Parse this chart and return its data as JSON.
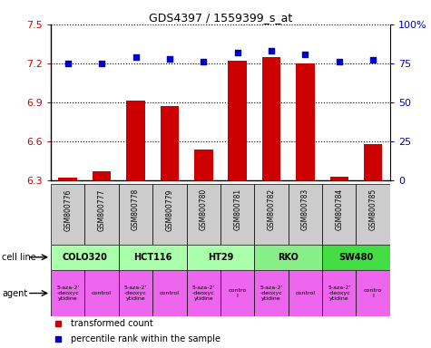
{
  "title": "GDS4397 / 1559399_s_at",
  "samples": [
    "GSM800776",
    "GSM800777",
    "GSM800778",
    "GSM800779",
    "GSM800780",
    "GSM800781",
    "GSM800782",
    "GSM800783",
    "GSM800784",
    "GSM800785"
  ],
  "bar_values": [
    6.32,
    6.37,
    6.91,
    6.87,
    6.54,
    7.22,
    7.25,
    7.2,
    6.33,
    6.58
  ],
  "dot_values": [
    75,
    75,
    79,
    78,
    76,
    82,
    83,
    81,
    76,
    77
  ],
  "bar_color": "#cc0000",
  "dot_color": "#0000cc",
  "ylim_left": [
    6.3,
    7.5
  ],
  "ylim_right": [
    0,
    100
  ],
  "yticks_left": [
    6.3,
    6.6,
    6.9,
    7.2,
    7.5
  ],
  "ytick_labels_left": [
    "6.3",
    "6.6",
    "6.9",
    "7.2",
    "7.5"
  ],
  "yticks_right": [
    0,
    25,
    50,
    75,
    100
  ],
  "ytick_labels_right": [
    "0",
    "25",
    "50",
    "75",
    "100%"
  ],
  "cell_lines": [
    {
      "label": "COLO320",
      "start": 0,
      "end": 2,
      "color": "#aaffaa"
    },
    {
      "label": "HCT116",
      "start": 2,
      "end": 4,
      "color": "#aaffaa"
    },
    {
      "label": "HT29",
      "start": 4,
      "end": 6,
      "color": "#aaffaa"
    },
    {
      "label": "RKO",
      "start": 6,
      "end": 8,
      "color": "#88ee88"
    },
    {
      "label": "SW480",
      "start": 8,
      "end": 10,
      "color": "#44dd44"
    }
  ],
  "agents": [
    {
      "label": "5-aza-2'\n-deoxyc\nytidine"
    },
    {
      "label": "control"
    },
    {
      "label": "5-aza-2'\n-deoxyc\nytidine"
    },
    {
      "label": "control"
    },
    {
      "label": "5-aza-2'\n-deoxyc\nytidine"
    },
    {
      "label": "contro\nl"
    },
    {
      "label": "5-aza-2'\n-deoxyc\nytidine"
    },
    {
      "label": "control"
    },
    {
      "label": "5-aza-2'\n-deoxyc\nytidine"
    },
    {
      "label": "contro\nl"
    }
  ],
  "agent_color": "#ee66ee",
  "legend_items": [
    {
      "label": "transformed count",
      "color": "#cc0000"
    },
    {
      "label": "percentile rank within the sample",
      "color": "#0000cc"
    }
  ],
  "row_label_cell_line": "cell line",
  "row_label_agent": "agent",
  "sample_bg_color": "#cccccc",
  "background_color": "#ffffff"
}
